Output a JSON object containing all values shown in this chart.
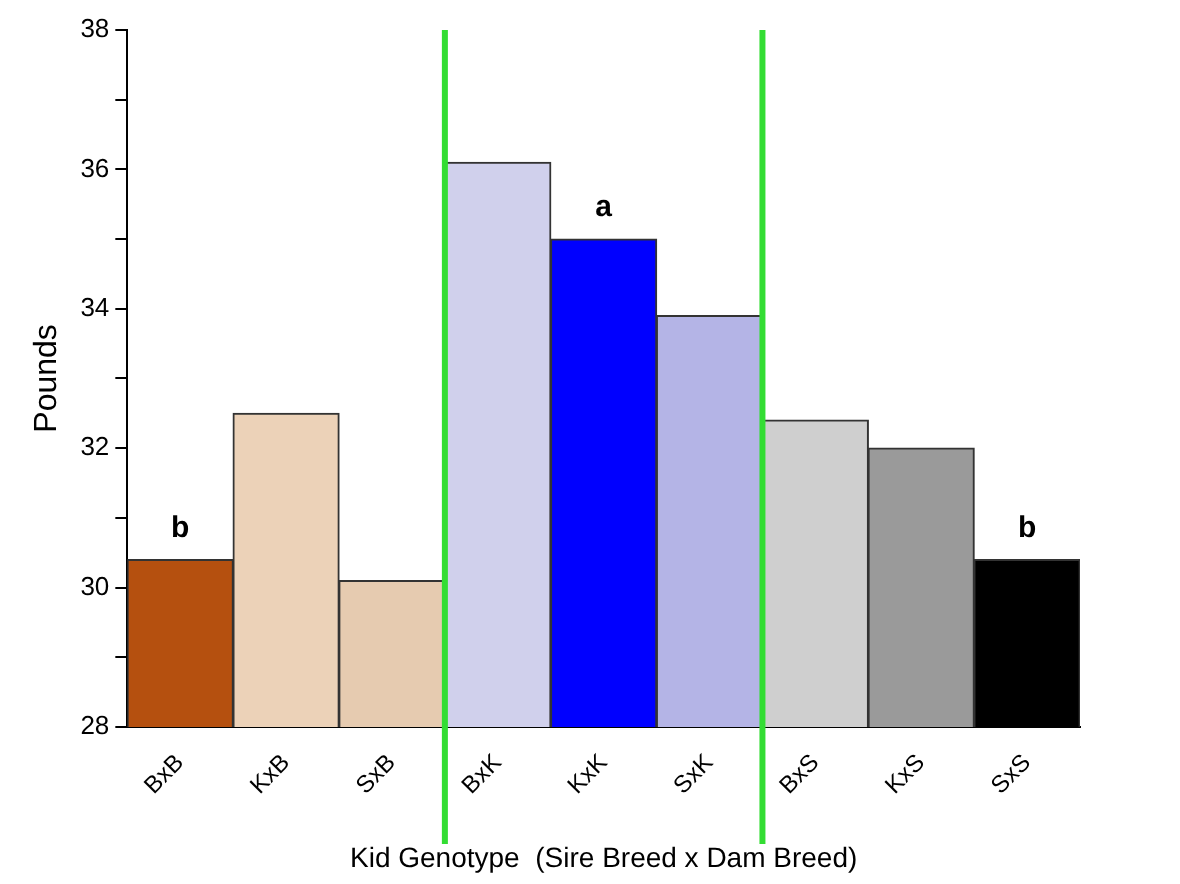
{
  "chart_data": {
    "type": "bar",
    "xlabel": "Kid Genotype  (Sire Breed x Dam Breed)",
    "ylabel": "Pounds",
    "categories": [
      "BxB",
      "KxB",
      "SxB",
      "BxK",
      "KxK",
      "SxK",
      "BxS",
      "KxS",
      "SxS"
    ],
    "values": [
      30.4,
      32.5,
      30.1,
      36.1,
      35.0,
      33.9,
      32.4,
      32.0,
      30.4
    ],
    "colors": [
      "#b5500f",
      "#ecd2b8",
      "#e6cbb0",
      "#d0d0ec",
      "#0000ff",
      "#b4b4e6",
      "#cfcfcf",
      "#9a9a9a",
      "#000000"
    ],
    "ylim": [
      28,
      38
    ],
    "yticks": [
      28,
      {
        "value": 29,
        "label": null
      },
      30,
      {
        "value": 31,
        "label": null
      },
      32,
      {
        "value": 33,
        "label": null
      },
      34,
      {
        "value": 35,
        "label": null
      },
      36,
      {
        "value": 37,
        "label": null
      },
      38
    ],
    "grid": false,
    "legend": false,
    "annotations": [
      {
        "text": "b",
        "x": "BxB",
        "y": 30.4
      },
      {
        "text": "a",
        "x": "KxK",
        "y": 35.0
      },
      {
        "text": "b",
        "x": "SxS",
        "y": 30.4
      }
    ]
  }
}
